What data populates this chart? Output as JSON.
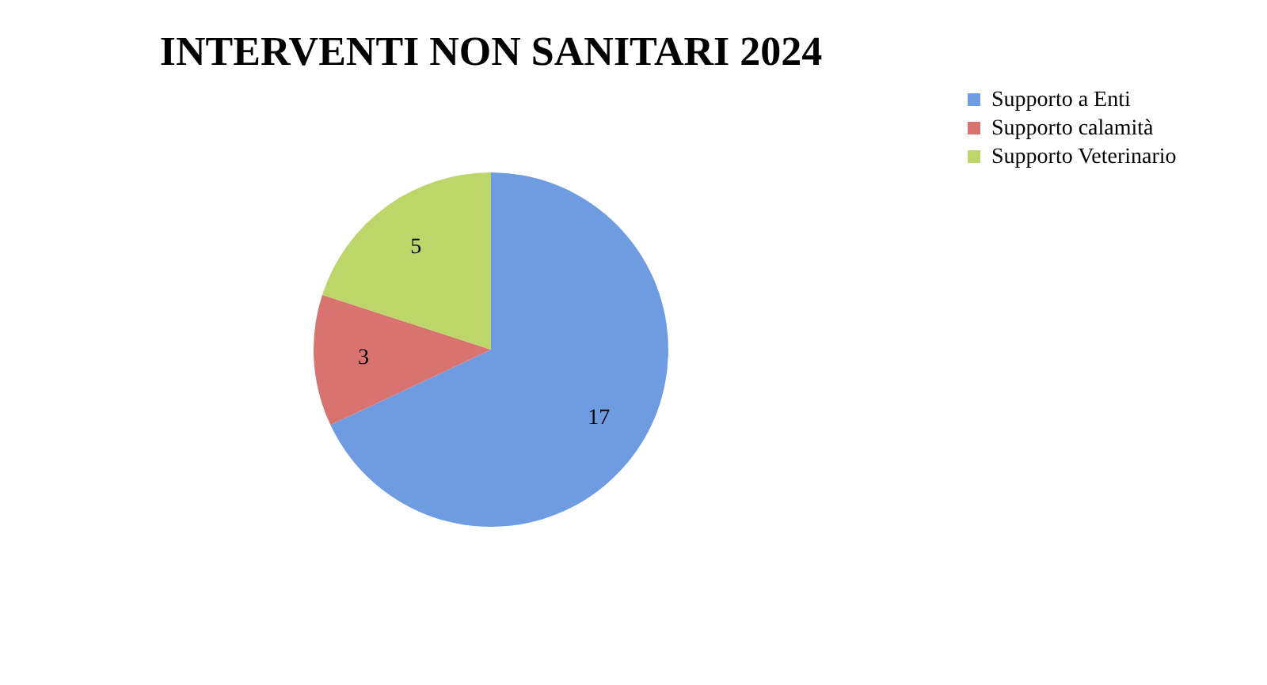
{
  "chart_data": {
    "type": "pie",
    "title": "INTERVENTI NON SANITARI 2024",
    "categories": [
      "Supporto a Enti",
      "Supporto calamità",
      "Supporto Veterinario"
    ],
    "values": [
      17,
      3,
      5
    ],
    "colors": [
      "#6f9be0",
      "#d9736f",
      "#bcd66a"
    ],
    "data_labels": true,
    "legend": "right"
  }
}
